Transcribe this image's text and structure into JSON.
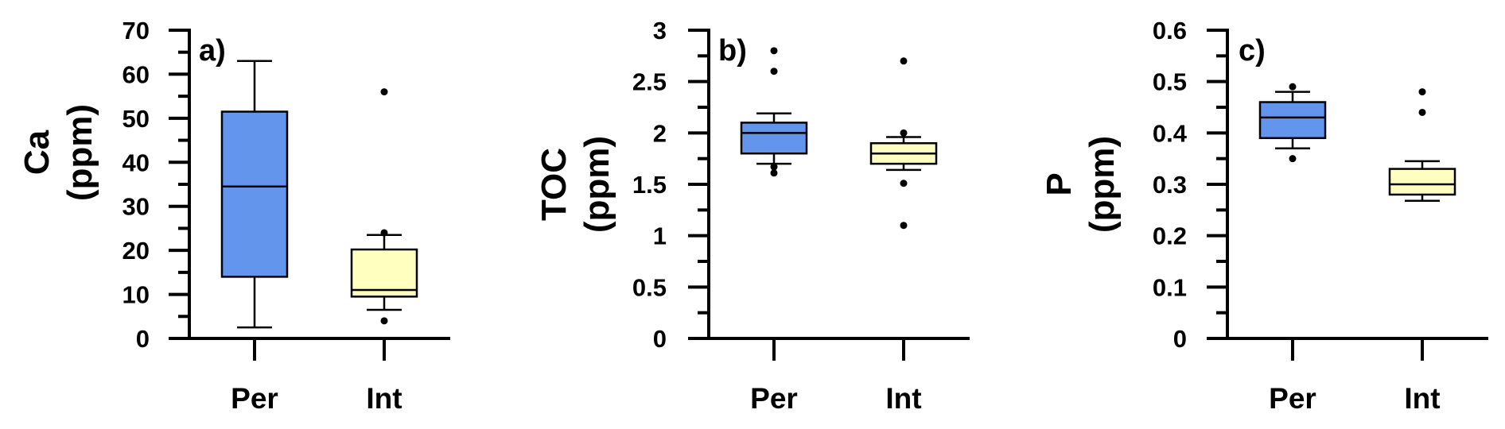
{
  "chart_data": [
    {
      "type": "box",
      "panel_label": "a)",
      "ylabel": "Ca",
      "ylabel_unit": "(ppm)",
      "ylim": [
        0,
        70
      ],
      "yticks": [
        0,
        10,
        20,
        30,
        40,
        50,
        60,
        70
      ],
      "ytick_labels": [
        "0",
        "10",
        "20",
        "30",
        "40",
        "50",
        "60",
        "70"
      ],
      "categories": [
        "Per",
        "Int"
      ],
      "boxes": [
        {
          "category": "Per",
          "color": "#6495ED",
          "whisker_low": 2.5,
          "q1": 14,
          "median": 34.5,
          "q3": 51.5,
          "whisker_high": 63,
          "outliers": []
        },
        {
          "category": "Int",
          "color": "#FFFFBF",
          "whisker_low": 6.5,
          "q1": 9.5,
          "median": 11,
          "q3": 20.2,
          "whisker_high": 23.5,
          "outliers": [
            4,
            24,
            56
          ]
        }
      ]
    },
    {
      "type": "box",
      "panel_label": "b)",
      "ylabel": "TOC",
      "ylabel_unit": "(ppm)",
      "ylim": [
        0,
        3
      ],
      "yticks": [
        0,
        0.5,
        1,
        1.5,
        2,
        2.5,
        3
      ],
      "ytick_labels": [
        "0",
        "0.5",
        "1",
        "1.5",
        "2",
        "2.5",
        "3"
      ],
      "categories": [
        "Per",
        "Int"
      ],
      "boxes": [
        {
          "category": "Per",
          "color": "#6495ED",
          "whisker_low": 1.7,
          "q1": 1.8,
          "median": 2.0,
          "q3": 2.1,
          "whisker_high": 2.19,
          "outliers": [
            1.61,
            1.67,
            2.6,
            2.8
          ]
        },
        {
          "category": "Int",
          "color": "#FFFFBF",
          "whisker_low": 1.64,
          "q1": 1.7,
          "median": 1.8,
          "q3": 1.9,
          "whisker_high": 1.96,
          "outliers": [
            1.1,
            1.51,
            2.0,
            2.7
          ]
        }
      ]
    },
    {
      "type": "box",
      "panel_label": "c)",
      "ylabel": "P",
      "ylabel_unit": "(ppm)",
      "ylim": [
        0,
        0.6
      ],
      "yticks": [
        0,
        0.1,
        0.2,
        0.3,
        0.4,
        0.5,
        0.6
      ],
      "ytick_labels": [
        "0",
        "0.1",
        "0.2",
        "0.3",
        "0.4",
        "0.5",
        "0.6"
      ],
      "categories": [
        "Per",
        "Int"
      ],
      "boxes": [
        {
          "category": "Per",
          "color": "#6495ED",
          "whisker_low": 0.37,
          "q1": 0.39,
          "median": 0.43,
          "q3": 0.46,
          "whisker_high": 0.48,
          "outliers": [
            0.35,
            0.49
          ]
        },
        {
          "category": "Int",
          "color": "#FFFFBF",
          "whisker_low": 0.268,
          "q1": 0.28,
          "median": 0.3,
          "q3": 0.33,
          "whisker_high": 0.345,
          "outliers": [
            0.44,
            0.48
          ]
        }
      ]
    }
  ]
}
